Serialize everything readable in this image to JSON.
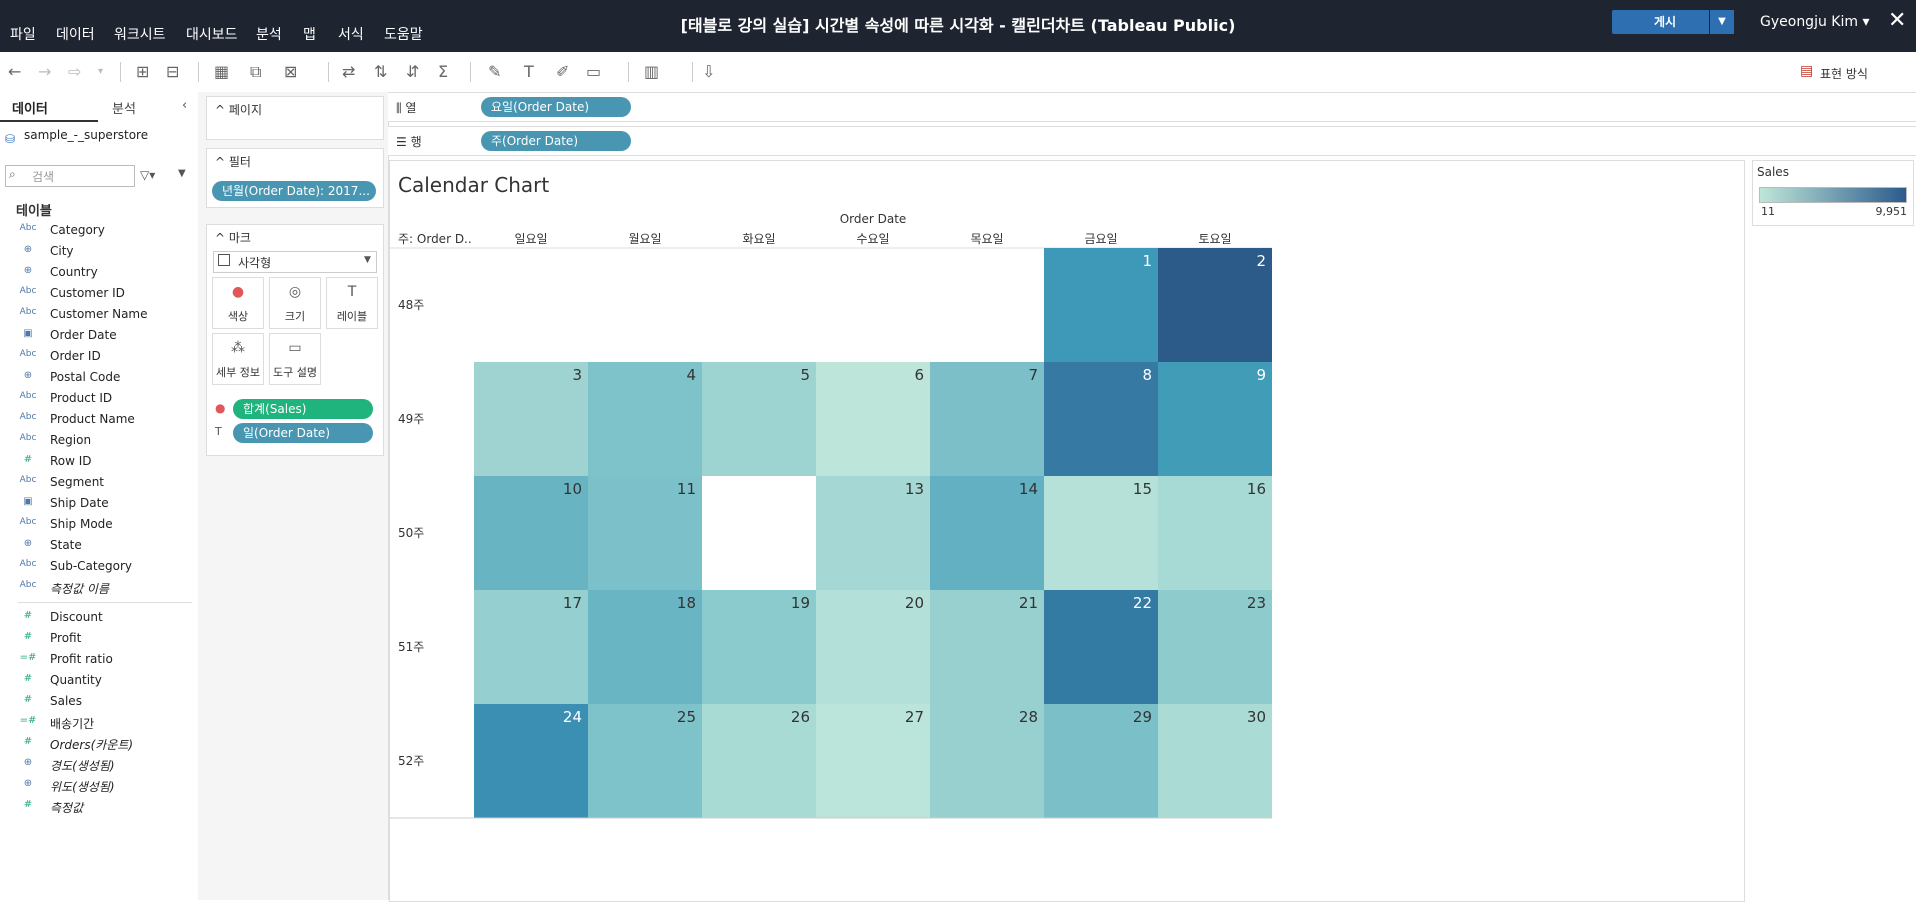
{
  "app": {
    "menus": [
      "파일",
      "데이터",
      "워크시트",
      "대시보드",
      "분석",
      "맵",
      "서식",
      "도움말"
    ],
    "title": "[태블로 강의 실습] 시간별 속성에 따른 시각화 - 캘린더차트 (Tableau Public)",
    "publish_label": "게시",
    "user": "Gyeongju Kim ▾",
    "present_mode": "표현 방식"
  },
  "datapane": {
    "tab_data": "데이터",
    "tab_analysis": "분석",
    "datasource": "sample_-_superstore",
    "search_placeholder": "검색",
    "tables_heading": "테이블",
    "dimensions": [
      {
        "name": "Category",
        "type": "abc"
      },
      {
        "name": "City",
        "type": "geo"
      },
      {
        "name": "Country",
        "type": "geo"
      },
      {
        "name": "Customer ID",
        "type": "abc"
      },
      {
        "name": "Customer Name",
        "type": "abc"
      },
      {
        "name": "Order Date",
        "type": "date"
      },
      {
        "name": "Order ID",
        "type": "abc"
      },
      {
        "name": "Postal Code",
        "type": "geo"
      },
      {
        "name": "Product ID",
        "type": "abc"
      },
      {
        "name": "Product Name",
        "type": "abc"
      },
      {
        "name": "Region",
        "type": "abc"
      },
      {
        "name": "Row ID",
        "type": "num"
      },
      {
        "name": "Segment",
        "type": "abc"
      },
      {
        "name": "Ship Date",
        "type": "date"
      },
      {
        "name": "Ship Mode",
        "type": "abc"
      },
      {
        "name": "State",
        "type": "geo"
      },
      {
        "name": "Sub-Category",
        "type": "abc"
      },
      {
        "name": "측정값 이름",
        "type": "abc",
        "italic": true
      }
    ],
    "measures": [
      {
        "name": "Discount",
        "type": "num"
      },
      {
        "name": "Profit",
        "type": "num"
      },
      {
        "name": "Profit ratio",
        "type": "calc"
      },
      {
        "name": "Quantity",
        "type": "num"
      },
      {
        "name": "Sales",
        "type": "num"
      },
      {
        "name": "배송기간",
        "type": "calc"
      },
      {
        "name": "Orders(카운트)",
        "type": "num",
        "italic": true
      },
      {
        "name": "경도(생성됨)",
        "type": "geo",
        "italic": true
      },
      {
        "name": "위도(생성됨)",
        "type": "geo",
        "italic": true
      },
      {
        "name": "측정값",
        "type": "num",
        "italic": true
      }
    ]
  },
  "cards": {
    "pages_title": "페이지",
    "filters_title": "필터",
    "filter_pill": "년월(Order Date): 2017...",
    "marks_title": "마크",
    "mark_type": "사각형",
    "mark_buttons": [
      "색상",
      "크기",
      "레이블",
      "세부 정보",
      "도구 설명"
    ],
    "color_pill": "합계(Sales)",
    "label_pill": "일(Order Date)"
  },
  "shelves": {
    "columns_label": "열",
    "columns_pill": "요일(Order Date)",
    "rows_label": "행",
    "rows_pill": "주(Order Date)"
  },
  "legend": {
    "title": "Sales",
    "min": "11",
    "max": "9,951",
    "color_low": "#bfe6d8",
    "color_high": "#2b5b8c"
  },
  "chart_data": {
    "type": "heatmap",
    "title": "Calendar Chart",
    "column_header": "Order Date",
    "row_header": "주: Order D..",
    "columns": [
      "일요일",
      "월요일",
      "화요일",
      "수요일",
      "목요일",
      "금요일",
      "토요일"
    ],
    "rows": [
      "48주",
      "49주",
      "50주",
      "51주",
      "52주"
    ],
    "cells": [
      {
        "row": 0,
        "col": 5,
        "day": 1,
        "color": "#3e99b8"
      },
      {
        "row": 0,
        "col": 6,
        "day": 2,
        "color": "#2c5b8a"
      },
      {
        "row": 1,
        "col": 0,
        "day": 3,
        "color": "#9fd3d1"
      },
      {
        "row": 1,
        "col": 1,
        "day": 4,
        "color": "#7ec3ca"
      },
      {
        "row": 1,
        "col": 2,
        "day": 5,
        "color": "#9dd3d1"
      },
      {
        "row": 1,
        "col": 3,
        "day": 6,
        "color": "#bde5da"
      },
      {
        "row": 1,
        "col": 4,
        "day": 7,
        "color": "#7cbfc8"
      },
      {
        "row": 1,
        "col": 5,
        "day": 8,
        "color": "#367aa3"
      },
      {
        "row": 1,
        "col": 6,
        "day": 9,
        "color": "#419cb8"
      },
      {
        "row": 2,
        "col": 0,
        "day": 10,
        "color": "#69b4c3"
      },
      {
        "row": 2,
        "col": 1,
        "day": 11,
        "color": "#7cc1c9"
      },
      {
        "row": 2,
        "col": 3,
        "day": 13,
        "color": "#a5d8d4"
      },
      {
        "row": 2,
        "col": 4,
        "day": 14,
        "color": "#62b0c2"
      },
      {
        "row": 2,
        "col": 5,
        "day": 15,
        "color": "#b6e1d8"
      },
      {
        "row": 2,
        "col": 6,
        "day": 16,
        "color": "#a8dad5"
      },
      {
        "row": 3,
        "col": 0,
        "day": 17,
        "color": "#96cfcf"
      },
      {
        "row": 3,
        "col": 1,
        "day": 18,
        "color": "#6ab5c3"
      },
      {
        "row": 3,
        "col": 2,
        "day": 19,
        "color": "#8ccbcd"
      },
      {
        "row": 3,
        "col": 3,
        "day": 20,
        "color": "#b3e0d8"
      },
      {
        "row": 3,
        "col": 4,
        "day": 21,
        "color": "#98d0cf"
      },
      {
        "row": 3,
        "col": 5,
        "day": 22,
        "color": "#347ba4"
      },
      {
        "row": 3,
        "col": 6,
        "day": 23,
        "color": "#8dcbcd"
      },
      {
        "row": 4,
        "col": 0,
        "day": 24,
        "color": "#3a8fb2"
      },
      {
        "row": 4,
        "col": 1,
        "day": 25,
        "color": "#7fc3ca"
      },
      {
        "row": 4,
        "col": 2,
        "day": 26,
        "color": "#a9dbd5"
      },
      {
        "row": 4,
        "col": 3,
        "day": 27,
        "color": "#bbe4da"
      },
      {
        "row": 4,
        "col": 4,
        "day": 28,
        "color": "#97d0cf"
      },
      {
        "row": 4,
        "col": 5,
        "day": 29,
        "color": "#7bbfc9"
      },
      {
        "row": 4,
        "col": 6,
        "day": 30,
        "color": "#aadbd5"
      }
    ]
  }
}
